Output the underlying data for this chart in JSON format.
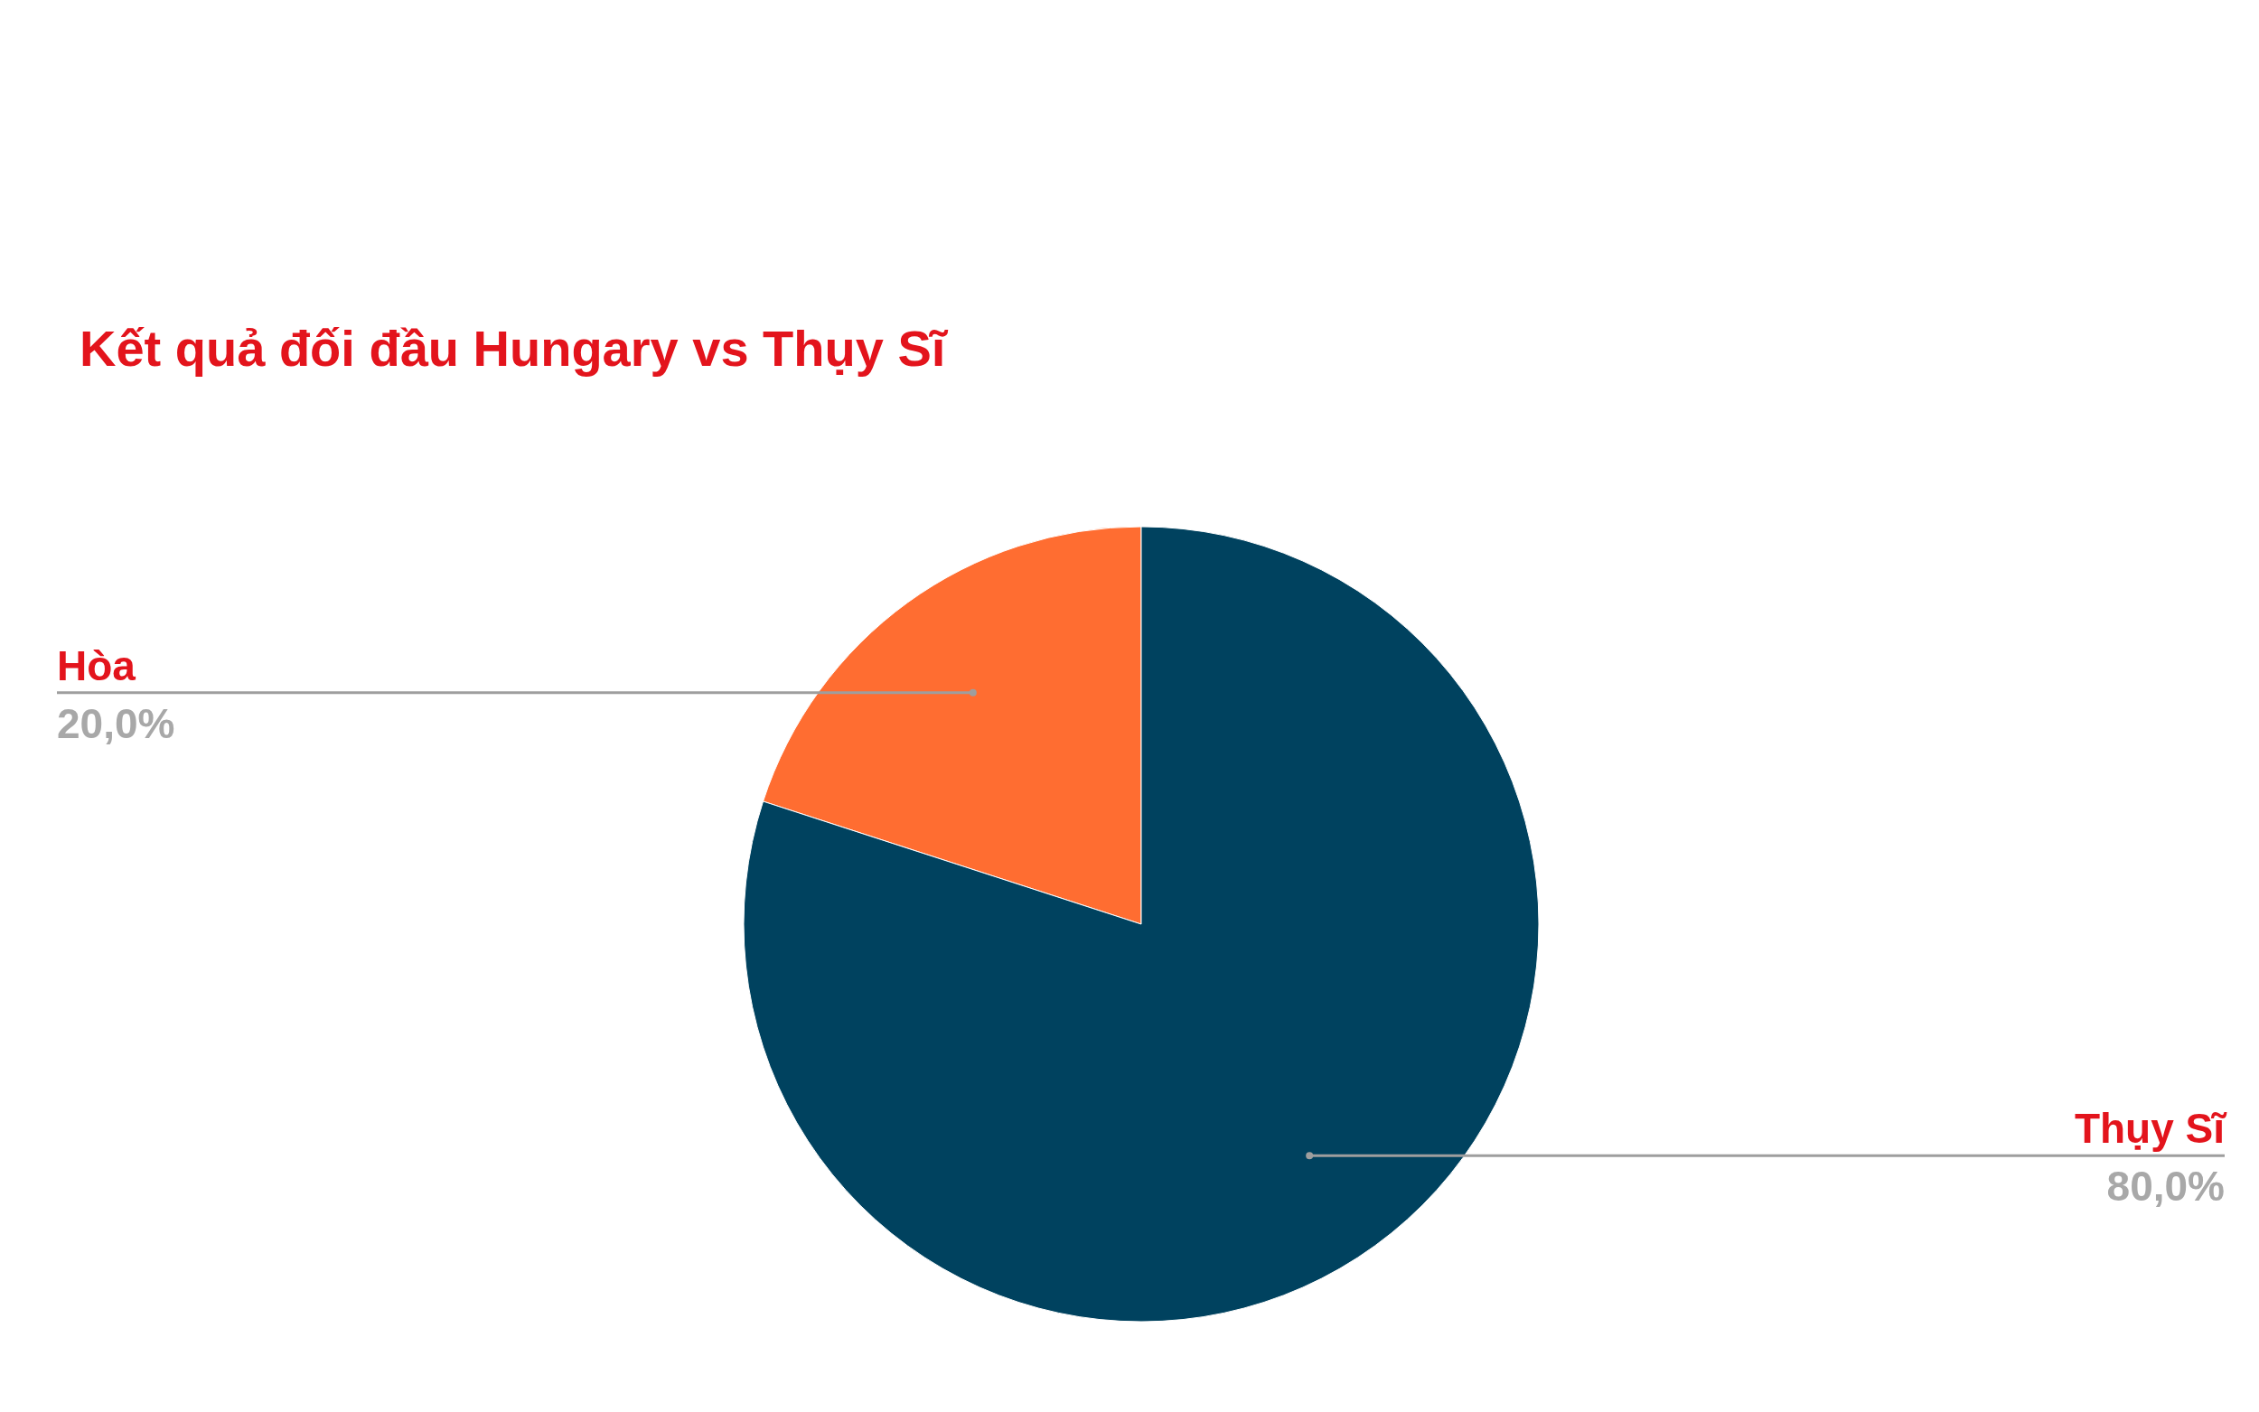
{
  "chart_data": {
    "type": "pie",
    "title": "Kết quả đối đầu Hungary vs Thụy Sĩ",
    "categories": [
      "Hòa",
      "Thụy Sĩ"
    ],
    "values": [
      20,
      80
    ],
    "colors": [
      "#ff6d31",
      "#00425f"
    ],
    "value_labels": [
      "20,0%",
      "80,0%"
    ]
  }
}
